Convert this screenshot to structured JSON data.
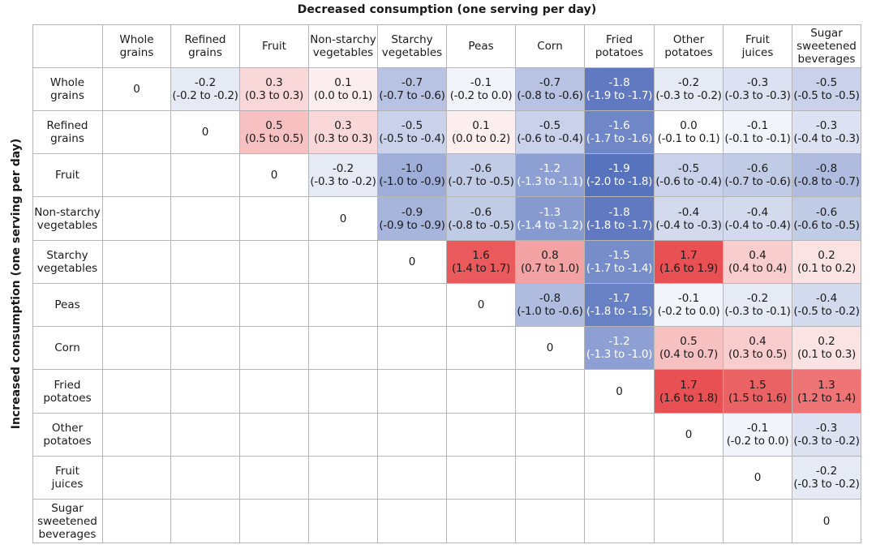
{
  "title_top": "Decreased consumption (one serving per day)",
  "title_side": "Increased consumption (one serving per day)",
  "chart_data": {
    "type": "heatmap",
    "colors": {
      "negative": "#4a67b8",
      "positive": "#e8474a",
      "neutral": "#ffffff"
    },
    "columns": [
      "Whole\ngrains",
      "Refined\ngrains",
      "Fruit",
      "Non-starchy\nvegetables",
      "Starchy\nvegetables",
      "Peas",
      "Corn",
      "Fried\npotatoes",
      "Other\npotatoes",
      "Fruit\njuices",
      "Sugar\nsweetened\nbeverages"
    ],
    "rows": [
      "Whole\ngrains",
      "Refined\ngrains",
      "Fruit",
      "Non-starchy\nvegetables",
      "Starchy\nvegetables",
      "Peas",
      "Corn",
      "Fried\npotatoes",
      "Other\npotatoes",
      "Fruit\njuices",
      "Sugar\nsweetened\nbeverages"
    ],
    "cells": [
      [
        {
          "v": "0"
        },
        {
          "v": "-0.2",
          "ci": "(-0.2 to -0.2)"
        },
        {
          "v": "0.3",
          "ci": "(0.3 to 0.3)"
        },
        {
          "v": "0.1",
          "ci": "(0.0 to 0.1)"
        },
        {
          "v": "-0.7",
          "ci": "(-0.7 to -0.6)"
        },
        {
          "v": "-0.1",
          "ci": "(-0.2 to 0.0)"
        },
        {
          "v": "-0.7",
          "ci": "(-0.8 to -0.6)"
        },
        {
          "v": "-1.8",
          "ci": "(-1.9 to -1.7)"
        },
        {
          "v": "-0.2",
          "ci": "(-0.3 to -0.2)"
        },
        {
          "v": "-0.3",
          "ci": "(-0.3 to -0.3)"
        },
        {
          "v": "-0.5",
          "ci": "(-0.5 to -0.5)"
        }
      ],
      [
        null,
        {
          "v": "0"
        },
        {
          "v": "0.5",
          "ci": "(0.5 to 0.5)"
        },
        {
          "v": "0.3",
          "ci": "(0.3 to 0.3)"
        },
        {
          "v": "-0.5",
          "ci": "(-0.5 to -0.4)"
        },
        {
          "v": "0.1",
          "ci": "(0.0 to 0.2)"
        },
        {
          "v": "-0.5",
          "ci": "(-0.6 to -0.4)"
        },
        {
          "v": "-1.6",
          "ci": "(-1.7 to -1.6)"
        },
        {
          "v": "0.0",
          "ci": "(-0.1 to 0.1)"
        },
        {
          "v": "-0.1",
          "ci": "(-0.1 to -0.1)"
        },
        {
          "v": "-0.3",
          "ci": "(-0.4 to -0.3)"
        }
      ],
      [
        null,
        null,
        {
          "v": "0"
        },
        {
          "v": "-0.2",
          "ci": "(-0.3 to -0.2)"
        },
        {
          "v": "-1.0",
          "ci": "(-1.0 to -0.9)"
        },
        {
          "v": "-0.6",
          "ci": "(-0.7 to -0.5)"
        },
        {
          "v": "-1.2",
          "ci": "(-1.3 to -1.1)"
        },
        {
          "v": "-1.9",
          "ci": "(-2.0 to -1.8)"
        },
        {
          "v": "-0.5",
          "ci": "(-0.6 to -0.4)"
        },
        {
          "v": "-0.6",
          "ci": "(-0.7 to -0.6)"
        },
        {
          "v": "-0.8",
          "ci": "(-0.8 to -0.7)"
        }
      ],
      [
        null,
        null,
        null,
        {
          "v": "0"
        },
        {
          "v": "-0.9",
          "ci": "(-0.9 to -0.9)"
        },
        {
          "v": "-0.6",
          "ci": "(-0.8 to -0.5)"
        },
        {
          "v": "-1.3",
          "ci": "(-1.4 to -1.2)"
        },
        {
          "v": "-1.8",
          "ci": "(-1.8 to -1.7)"
        },
        {
          "v": "-0.4",
          "ci": "(-0.4 to -0.3)"
        },
        {
          "v": "-0.4",
          "ci": "(-0.4 to -0.4)"
        },
        {
          "v": "-0.6",
          "ci": "(-0.6 to -0.5)"
        }
      ],
      [
        null,
        null,
        null,
        null,
        {
          "v": "0"
        },
        {
          "v": "1.6",
          "ci": "(1.4 to 1.7)"
        },
        {
          "v": "0.8",
          "ci": "(0.7 to 1.0)"
        },
        {
          "v": "-1.5",
          "ci": "(-1.7 to -1.4)"
        },
        {
          "v": "1.7",
          "ci": "(1.6 to 1.9)"
        },
        {
          "v": "0.4",
          "ci": "(0.4 to 0.4)"
        },
        {
          "v": "0.2",
          "ci": "(0.1 to 0.2)"
        }
      ],
      [
        null,
        null,
        null,
        null,
        null,
        {
          "v": "0"
        },
        {
          "v": "-0.8",
          "ci": "(-1.0 to -0.6)"
        },
        {
          "v": "-1.7",
          "ci": "(-1.8 to -1.5)"
        },
        {
          "v": "-0.1",
          "ci": "(-0.2 to 0.0)"
        },
        {
          "v": "-0.2",
          "ci": "(-0.3 to -0.1)"
        },
        {
          "v": "-0.4",
          "ci": "(-0.5 to -0.2)"
        }
      ],
      [
        null,
        null,
        null,
        null,
        null,
        null,
        {
          "v": "0"
        },
        {
          "v": "-1.2",
          "ci": "(-1.3 to -1.0)"
        },
        {
          "v": "0.5",
          "ci": "(0.4 to 0.7)"
        },
        {
          "v": "0.4",
          "ci": "(0.3 to 0.5)"
        },
        {
          "v": "0.2",
          "ci": "(0.1 to 0.3)"
        }
      ],
      [
        null,
        null,
        null,
        null,
        null,
        null,
        null,
        {
          "v": "0"
        },
        {
          "v": "1.7",
          "ci": "(1.6 to 1.8)"
        },
        {
          "v": "1.5",
          "ci": "(1.5 to 1.6)"
        },
        {
          "v": "1.3",
          "ci": "(1.2 to 1.4)"
        }
      ],
      [
        null,
        null,
        null,
        null,
        null,
        null,
        null,
        null,
        {
          "v": "0"
        },
        {
          "v": "-0.1",
          "ci": "(-0.2 to 0.0)"
        },
        {
          "v": "-0.3",
          "ci": "(-0.3 to -0.2)"
        }
      ],
      [
        null,
        null,
        null,
        null,
        null,
        null,
        null,
        null,
        null,
        {
          "v": "0"
        },
        {
          "v": "-0.2",
          "ci": "(-0.3 to -0.2)"
        }
      ],
      [
        null,
        null,
        null,
        null,
        null,
        null,
        null,
        null,
        null,
        null,
        {
          "v": "0"
        }
      ]
    ]
  }
}
